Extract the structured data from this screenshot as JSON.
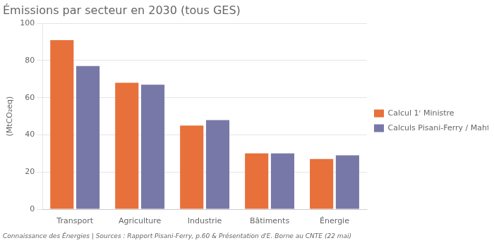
{
  "chart_data": {
    "type": "bar",
    "title": "Émissions par secteur en 2030 (tous GES)",
    "ylabel": "(MtCO₂eq)",
    "footnote": "Connaissance des Énergies | Sources : Rapport Pisani-Ferry, p.60 & Présentation d'E. Borne au CNTE (22 mai)",
    "categories": [
      "Transport",
      "Agriculture",
      "Industrie",
      "Bâtiments",
      "Énergie"
    ],
    "series": [
      {
        "name": "Calcul 1ʳ Ministre",
        "color": "#E8703A",
        "values": [
          91,
          68,
          45,
          30,
          27
        ]
      },
      {
        "name": "Calculs Pisani-Ferry / Mahfouz",
        "color": "#7878A8",
        "values": [
          77,
          67,
          48,
          30,
          29
        ]
      }
    ],
    "ylim": [
      0,
      100
    ],
    "yticks": [
      0,
      20,
      40,
      60,
      80,
      100
    ],
    "grid": true,
    "legend": "right"
  }
}
